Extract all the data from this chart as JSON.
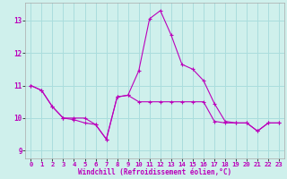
{
  "xlabel": "Windchill (Refroidissement éolien,°C)",
  "x_ticks": [
    0,
    1,
    2,
    3,
    4,
    5,
    6,
    7,
    8,
    9,
    10,
    11,
    12,
    13,
    14,
    15,
    16,
    17,
    18,
    19,
    20,
    21,
    22,
    23
  ],
  "ylim": [
    8.75,
    13.55
  ],
  "yticks": [
    9,
    10,
    11,
    12,
    13
  ],
  "xlim": [
    -0.5,
    23.5
  ],
  "background_color": "#cff0ec",
  "line_color": "#bb00bb",
  "grid_color": "#aadddd",
  "series1_x": [
    0,
    1,
    2,
    3,
    4,
    5,
    6,
    7,
    8,
    9,
    10,
    11,
    12,
    13,
    14,
    15,
    16,
    17,
    18,
    19,
    20,
    21,
    22,
    23
  ],
  "series1_y": [
    11.0,
    10.85,
    10.35,
    10.0,
    9.95,
    9.85,
    9.8,
    9.35,
    10.65,
    10.7,
    10.5,
    10.5,
    10.5,
    10.5,
    10.5,
    10.5,
    10.5,
    9.9,
    9.85,
    9.85,
    9.85,
    9.6,
    9.85,
    9.85
  ],
  "series2_x": [
    0,
    1,
    2,
    3,
    4,
    5,
    6,
    7,
    8,
    9,
    10,
    11,
    12,
    13,
    14,
    15,
    16,
    17,
    18,
    19,
    20,
    21,
    22,
    23
  ],
  "series2_y": [
    11.0,
    10.85,
    10.35,
    10.0,
    10.0,
    10.0,
    9.8,
    9.35,
    10.65,
    10.7,
    11.45,
    13.05,
    13.3,
    12.55,
    11.65,
    11.5,
    11.15,
    10.45,
    9.9,
    9.85,
    9.85,
    9.6,
    9.85,
    9.85
  ],
  "tick_fontsize": 5.2,
  "xlabel_fontsize": 5.5
}
